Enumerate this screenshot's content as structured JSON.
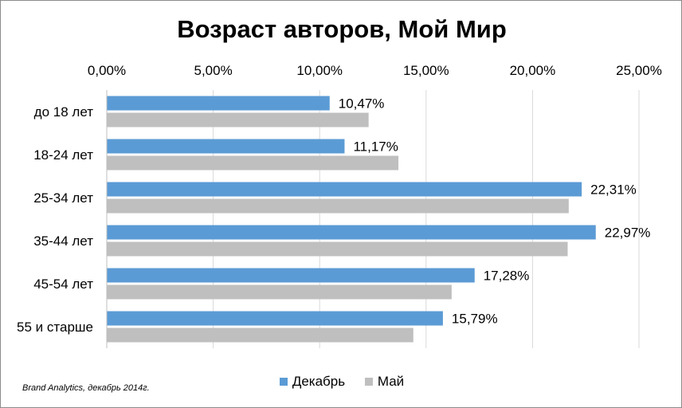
{
  "chart_data": {
    "type": "bar",
    "orientation": "horizontal",
    "title": "Возраст авторов, Мой Мир",
    "categories": [
      "до 18 лет",
      "18-24 лет",
      "25-34 лет",
      "35-44 лет",
      "45-54 лет",
      "55 и старше"
    ],
    "series": [
      {
        "name": "Декабрь",
        "color": "#5b9bd5",
        "values": [
          10.47,
          11.17,
          22.31,
          22.97,
          17.28,
          15.79
        ],
        "data_labels": [
          "10,47%",
          "11,17%",
          "22,31%",
          "22,97%",
          "17,28%",
          "15,79%"
        ]
      },
      {
        "name": "Май",
        "color": "#bfbfbf",
        "values": [
          12.3,
          13.7,
          21.7,
          21.65,
          16.2,
          14.4
        ]
      }
    ],
    "x_ticks": [
      0,
      5,
      10,
      15,
      20,
      25
    ],
    "x_tick_labels": [
      "0,00%",
      "5,00%",
      "10,00%",
      "15,00%",
      "20,00%",
      "25,00%"
    ],
    "xlim": [
      0,
      25
    ],
    "x_axis_position": "top",
    "grid": true,
    "legend_position": "bottom"
  },
  "source_note": "Brand Analytics, декабрь 2014г."
}
